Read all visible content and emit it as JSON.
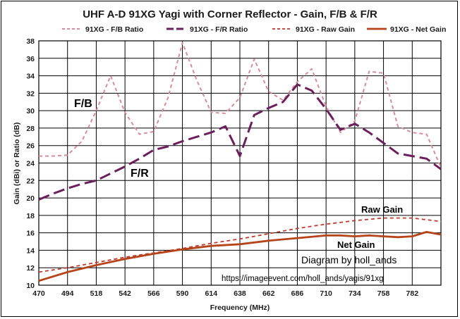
{
  "chart_data": {
    "type": "line",
    "title": "UHF A-D 91XG Yagi with Corner Reflector - Gain, F/B & F/R",
    "xlabel": "Frequency (MHz)",
    "ylabel": "Gain (dBi) or Ratio (dB)",
    "xlim": [
      470,
      806
    ],
    "ylim": [
      10,
      38
    ],
    "x_ticks": [
      470,
      494,
      518,
      542,
      566,
      590,
      614,
      638,
      662,
      686,
      710,
      734,
      758,
      782
    ],
    "y_ticks": [
      10,
      12,
      14,
      16,
      18,
      20,
      22,
      24,
      26,
      28,
      30,
      32,
      34,
      36,
      38
    ],
    "grid": true,
    "legend_position": "top",
    "series": [
      {
        "name": "91XG - F/B Ratio",
        "color": "#d98c9a",
        "style": "dashed",
        "x": [
          470,
          482,
          494,
          506,
          518,
          530,
          542,
          554,
          566,
          578,
          590,
          602,
          614,
          626,
          638,
          650,
          662,
          674,
          686,
          698,
          710,
          722,
          734,
          746,
          758,
          770,
          782,
          794,
          806
        ],
        "y": [
          24.8,
          24.8,
          24.9,
          26.5,
          30.0,
          34.0,
          29.8,
          27.3,
          27.6,
          31.5,
          37.8,
          33.5,
          29.8,
          29.7,
          31.5,
          35.9,
          32.2,
          31.2,
          33.3,
          34.8,
          30.5,
          27.5,
          28.8,
          34.5,
          34.3,
          28.2,
          27.5,
          27.3,
          23.5
        ]
      },
      {
        "name": "91XG - F/R Ratio",
        "color": "#6b1f5c",
        "style": "long-dashed",
        "x": [
          470,
          482,
          494,
          506,
          518,
          530,
          542,
          554,
          566,
          578,
          590,
          602,
          614,
          626,
          638,
          650,
          662,
          674,
          686,
          698,
          710,
          722,
          734,
          746,
          758,
          770,
          782,
          794,
          806
        ],
        "y": [
          19.8,
          20.5,
          21.1,
          21.6,
          22.0,
          22.8,
          23.6,
          24.5,
          25.5,
          25.9,
          26.5,
          27.0,
          27.5,
          28.2,
          24.8,
          29.5,
          30.3,
          31.0,
          33.0,
          32.3,
          30.2,
          27.8,
          28.5,
          27.5,
          26.3,
          25.1,
          24.8,
          24.5,
          23.3
        ]
      },
      {
        "name": "91XG - Raw Gain",
        "color": "#c0392b",
        "style": "dashed",
        "x": [
          470,
          494,
          518,
          542,
          566,
          590,
          614,
          638,
          662,
          686,
          710,
          734,
          758,
          782,
          806
        ],
        "y": [
          11.5,
          12.0,
          12.6,
          13.2,
          13.7,
          14.2,
          14.8,
          15.3,
          15.9,
          16.5,
          17.0,
          17.4,
          17.7,
          17.7,
          17.3
        ]
      },
      {
        "name": "91XG - Net Gain",
        "color": "#b5441a",
        "style": "solid",
        "x": [
          470,
          494,
          518,
          542,
          566,
          590,
          614,
          638,
          662,
          686,
          710,
          722,
          734,
          746,
          758,
          770,
          782,
          794,
          806
        ],
        "y": [
          10.5,
          11.5,
          12.3,
          13.0,
          13.6,
          14.1,
          14.5,
          14.7,
          15.1,
          15.4,
          15.7,
          15.7,
          15.6,
          15.7,
          15.6,
          15.5,
          15.6,
          16.1,
          15.8
        ]
      }
    ],
    "annotations": {
      "fb": "F/B",
      "fr": "F/R",
      "raw_gain": "Raw Gain",
      "net_gain": "Net Gain",
      "credit": "Diagram by holl_ands",
      "url": "https://imageevent.com/holl_ands/yagis/91xg"
    }
  }
}
